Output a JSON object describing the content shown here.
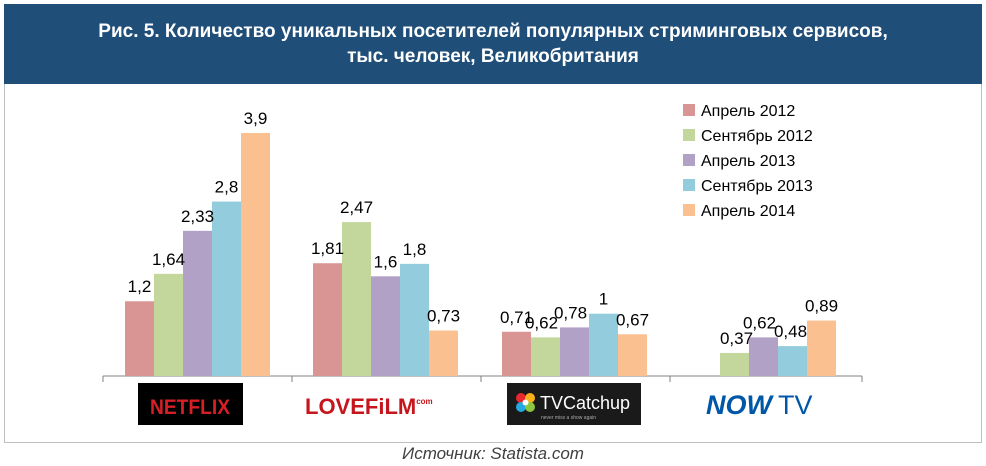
{
  "header": {
    "line1": "Рис. 5. Количество уникальных посетителей популярных стриминговых сервисов,",
    "line2": "тыс. человек, Великобритания"
  },
  "source": "Источник: Statista.com",
  "logos": [
    {
      "text": "NETFLIX",
      "color": "#d81f26"
    },
    {
      "text_a": "LOVEFiLM",
      "text_b": "com",
      "color": "#c4161c"
    },
    {
      "text_a": "TV",
      "text_b": "Catchup",
      "tagline": "never miss a show again"
    },
    {
      "text_a": "NOW",
      "text_b": "TV",
      "color": "#0057a8"
    }
  ],
  "chart_data": {
    "type": "bar",
    "title": "Количество уникальных посетителей популярных стриминговых сервисов, тыс. человек, Великобритания",
    "categories": [
      "Netflix",
      "LoveFilm",
      "TVCatchup",
      "NOW TV"
    ],
    "series": [
      {
        "name": "Апрель 2012",
        "color": "#d99594",
        "values": [
          1.2,
          1.81,
          0.71,
          null
        ],
        "labels": [
          "1,2",
          "1,81",
          "0,71",
          ""
        ]
      },
      {
        "name": "Сентябрь 2012",
        "color": "#c3d69b",
        "values": [
          1.64,
          2.47,
          0.62,
          0.37
        ],
        "labels": [
          "1,64",
          "2,47",
          "0,62",
          "0,37"
        ]
      },
      {
        "name": "Апрель 2013",
        "color": "#b2a1c7",
        "values": [
          2.33,
          1.6,
          0.78,
          0.62
        ],
        "labels": [
          "2,33",
          "1,6",
          "0,78",
          "0,62"
        ]
      },
      {
        "name": "Сентябрь 2013",
        "color": "#93cddd",
        "values": [
          2.8,
          1.8,
          1,
          0.48
        ],
        "labels": [
          "2,8",
          "1,8",
          "1",
          "0,48"
        ]
      },
      {
        "name": "Апрель 2014",
        "color": "#fac090",
        "values": [
          3.9,
          0.73,
          0.67,
          0.89
        ],
        "labels": [
          "3,9",
          "0,73",
          "0,67",
          "0,89"
        ]
      }
    ],
    "ylim": [
      0,
      4
    ],
    "grid": false,
    "legend": "top-right"
  }
}
